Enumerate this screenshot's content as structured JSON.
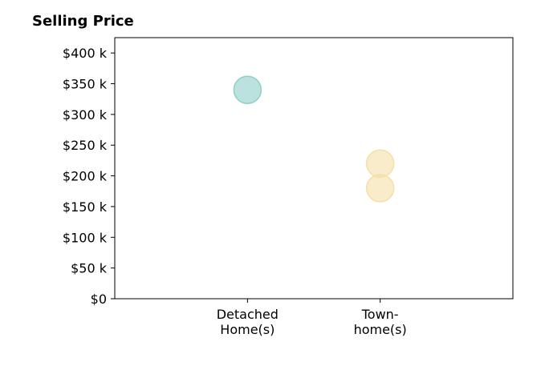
{
  "chart_data": {
    "type": "scatter",
    "title": "Selling Price",
    "xlabel": "",
    "ylabel": "",
    "categories": [
      [
        "Detached",
        "Home(s)"
      ],
      [
        "Town-",
        "home(s)"
      ]
    ],
    "yticks": [
      "$0",
      "$50 k",
      "$100 k",
      "$150 k",
      "$200 k",
      "$250 k",
      "$300 k",
      "$350 k",
      "$400 k"
    ],
    "ylim": [
      0,
      425
    ],
    "xlim": [
      0,
      3
    ],
    "grid": false,
    "points": [
      {
        "category": "Detached Home(s)",
        "x": 1,
        "y": 340,
        "color": "#8ecfc6"
      },
      {
        "category": "Town-home(s)",
        "x": 2,
        "y": 220,
        "color": "#f4dfa6"
      },
      {
        "category": "Town-home(s)",
        "x": 2,
        "y": 180,
        "color": "#f4dfa6"
      }
    ]
  }
}
